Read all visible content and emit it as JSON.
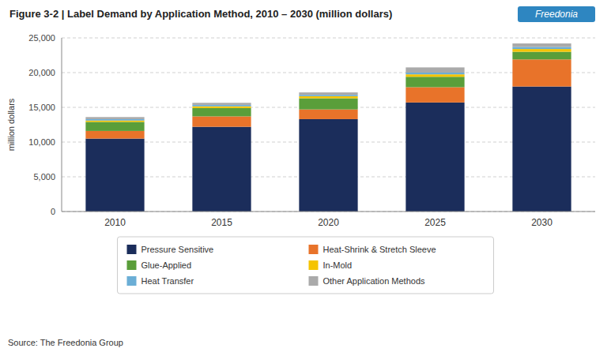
{
  "chart_data": {
    "type": "bar",
    "stacked": true,
    "title": "Figure 3-2 | Label Demand by Application Method, 2010 – 2030 (million dollars)",
    "y_label": "million dollars",
    "annotations": [
      "Freedonia",
      "Source: The Freedonia Group"
    ],
    "categories": [
      2010,
      2015,
      2020,
      2025,
      2030
    ],
    "series": [
      {
        "name": "Pressure Sensitive",
        "color": "#1b2d5b",
        "values": [
          10500,
          12200,
          13300,
          15700,
          18000
        ]
      },
      {
        "name": "Heat-Shrink & Stretch Sleeve",
        "color": "#e8732a",
        "values": [
          1100,
          1500,
          1400,
          2200,
          3900
        ]
      },
      {
        "name": "Glue-Applied",
        "color": "#5a9e3a",
        "values": [
          1300,
          1200,
          1600,
          1500,
          1100
        ]
      },
      {
        "name": "In-Mold",
        "color": "#f5c400",
        "values": [
          200,
          250,
          300,
          350,
          400
        ]
      },
      {
        "name": "Heat Transfer",
        "color": "#6baed6",
        "values": [
          200,
          200,
          200,
          250,
          300
        ]
      },
      {
        "name": "Other Application Methods",
        "color": "#aaaaaa",
        "values": [
          300,
          300,
          350,
          750,
          500
        ]
      }
    ],
    "ylim": [
      0,
      25000
    ],
    "yticks": [
      0,
      {
        "value": 5000,
        "label": "5,000"
      },
      {
        "value": 10000,
        "label": "10,000"
      },
      {
        "value": 15000,
        "label": "15,000"
      },
      {
        "value": 20000,
        "label": "20,000"
      },
      {
        "value": 25000,
        "label": "25,000"
      }
    ],
    "grid": true,
    "legend": "bottom"
  }
}
